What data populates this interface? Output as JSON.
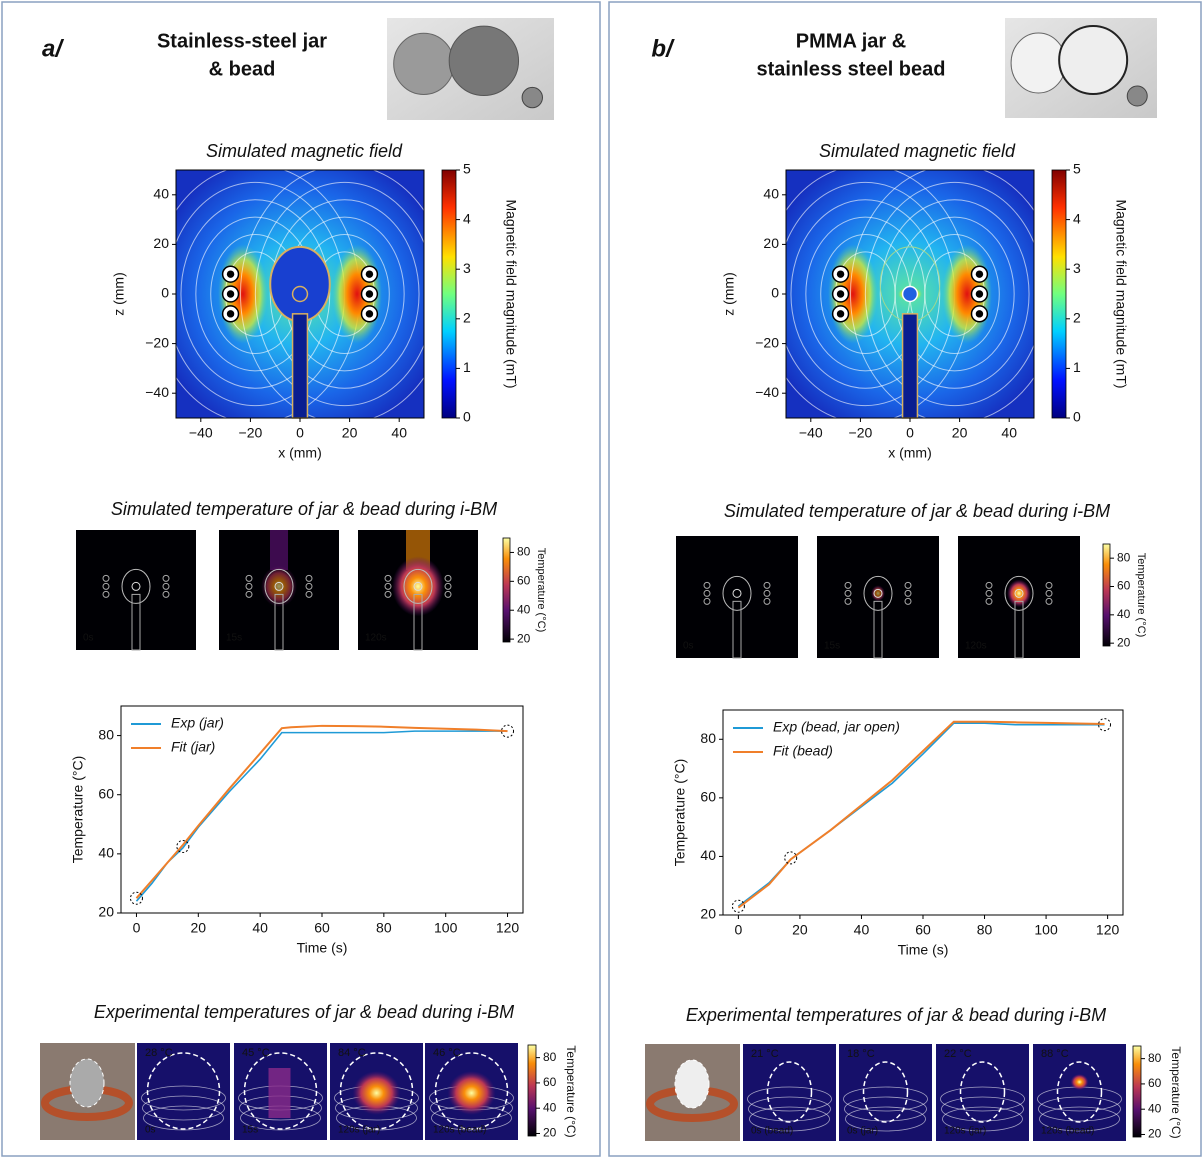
{
  "panels": [
    {
      "label": "a/",
      "title": [
        "Stainless-steel jar",
        "& bead"
      ],
      "field": {
        "title": "Simulated magnetic field",
        "xlabel": "x (mm)",
        "ylabel": "z (mm)",
        "xlim": [
          -50,
          50
        ],
        "ylim": [
          -50,
          50
        ],
        "xticks": [
          {
            "value": -40,
            "label": "−40"
          },
          {
            "value": -20,
            "label": "−20"
          },
          0,
          20,
          40
        ],
        "yticks": [
          40,
          20,
          0,
          {
            "value": -20,
            "label": "−20"
          },
          {
            "value": -40,
            "label": "−40"
          }
        ],
        "colorbar": {
          "label": "Magnetic field magnitude (mT)",
          "lim": [
            0,
            5
          ],
          "ticks": [
            0,
            1,
            2,
            3,
            4,
            5
          ]
        }
      },
      "sim": {
        "title": "Simulated temperature of jar & bead during i-BM",
        "frames": [
          "0s",
          "15s",
          "120s"
        ],
        "colorbar": {
          "label": "Temperature (°C)",
          "lim": [
            18,
            90
          ],
          "ticks": [
            20,
            40,
            60,
            80
          ]
        }
      },
      "exp": {
        "title": "Experimental temperatures of jar & bead during i-BM",
        "frames": [
          {
            "temp": "28 °C",
            "temp_color": "#ffffff",
            "time": "0s"
          },
          {
            "temp": "45 °C",
            "temp_color": "#ffffff",
            "time": "15s"
          },
          {
            "temp": "84 °C",
            "temp_color": "#e8231f",
            "time": "120s (jar)"
          },
          {
            "temp": "46 °C",
            "temp_color": "#2aa7e8",
            "time": "120s (bead)"
          }
        ],
        "colorbar": {
          "label": "Temperature (°C)",
          "lim": [
            18,
            90
          ],
          "ticks": [
            20,
            40,
            60,
            80
          ]
        }
      }
    },
    {
      "label": "b/",
      "title": [
        "PMMA jar &",
        "stainless steel bead"
      ],
      "field": {
        "title": "Simulated magnetic field",
        "xlabel": "x (mm)",
        "ylabel": "z (mm)",
        "xlim": [
          -50,
          50
        ],
        "ylim": [
          -50,
          50
        ],
        "xticks": [
          {
            "value": -40,
            "label": "−40"
          },
          {
            "value": -20,
            "label": "−20"
          },
          0,
          20,
          40
        ],
        "yticks": [
          40,
          20,
          0,
          {
            "value": -20,
            "label": "−20"
          },
          {
            "value": -40,
            "label": "−40"
          }
        ],
        "colorbar": {
          "label": "Magnetic field magnitude (mT)",
          "lim": [
            0,
            5
          ],
          "ticks": [
            0,
            1,
            2,
            3,
            4,
            5
          ]
        }
      },
      "sim": {
        "title": "Simulated temperature of jar & bead during i-BM",
        "frames": [
          "0s",
          "15s",
          "120s"
        ],
        "colorbar": {
          "label": "Temperature (°C)",
          "lim": [
            18,
            90
          ],
          "ticks": [
            20,
            40,
            60,
            80
          ]
        }
      },
      "exp": {
        "title": "Experimental temperatures of jar & bead during i-BM",
        "frames": [
          {
            "temp": "21 °C",
            "temp_color": "#ffffff",
            "time": "0s (bead)"
          },
          {
            "temp": "18 °C",
            "temp_color": "#ffffff",
            "time": "0s (jar)"
          },
          {
            "temp": "22 °C",
            "temp_color": "#2aa7e8",
            "time": "120s (jar)"
          },
          {
            "temp": "88 °C",
            "temp_color": "#e8231f",
            "time": "120s (bead)"
          }
        ],
        "colorbar": {
          "label": "Temperature (°C)",
          "lim": [
            18,
            90
          ],
          "ticks": [
            20,
            40,
            60,
            80
          ]
        }
      }
    }
  ],
  "chart_data": [
    {
      "type": "line",
      "xlabel": "Time (s)",
      "ylabel": "Temperature (°C)",
      "x": [
        0,
        5,
        10,
        15,
        20,
        30,
        40,
        47,
        50,
        60,
        70,
        80,
        90,
        100,
        110,
        120
      ],
      "series": [
        {
          "name": "Exp (jar)",
          "color": "#1f9ad6",
          "values": [
            24,
            30,
            37,
            42,
            49,
            61,
            72,
            81,
            81,
            81,
            81,
            81,
            81.5,
            81.5,
            81.5,
            81.5
          ]
        },
        {
          "name": "Fit (jar)",
          "color": "#f07f2a",
          "values": [
            25,
            31,
            37,
            43,
            49.5,
            62,
            74,
            82.5,
            82.8,
            83.3,
            83.2,
            83,
            82.6,
            82.3,
            82,
            81.5
          ]
        }
      ],
      "markers": {
        "x": [
          0,
          15,
          120
        ],
        "y": [
          25,
          42.5,
          81.5
        ]
      },
      "xlim": [
        -5,
        125
      ],
      "ylim": [
        20,
        90
      ],
      "xticks": [
        0,
        20,
        40,
        60,
        80,
        100,
        120
      ],
      "yticks": [
        20,
        40,
        60,
        80
      ],
      "legend": "upper left"
    },
    {
      "type": "line",
      "xlabel": "Time (s)",
      "ylabel": "Temperature (°C)",
      "x": [
        0,
        10,
        17,
        30,
        40,
        50,
        60,
        70,
        80,
        90,
        100,
        110,
        119
      ],
      "series": [
        {
          "name": "Exp (bead, jar open)",
          "color": "#1f9ad6",
          "values": [
            23,
            31,
            39,
            49,
            57,
            65,
            75,
            85.5,
            85.5,
            85,
            85,
            85,
            85
          ]
        },
        {
          "name": "Fit (bead)",
          "color": "#f07f2a",
          "values": [
            22.5,
            30.5,
            39,
            49,
            57.5,
            66,
            76,
            86,
            86,
            85.8,
            85.6,
            85.4,
            85.2
          ]
        }
      ],
      "markers": {
        "x": [
          0,
          17,
          119
        ],
        "y": [
          23,
          39.5,
          85
        ]
      },
      "xlim": [
        -5,
        125
      ],
      "ylim": [
        20,
        90
      ],
      "xticks": [
        0,
        20,
        40,
        60,
        80,
        100,
        120
      ],
      "yticks": [
        20,
        40,
        60,
        80
      ],
      "legend": "upper left"
    }
  ]
}
